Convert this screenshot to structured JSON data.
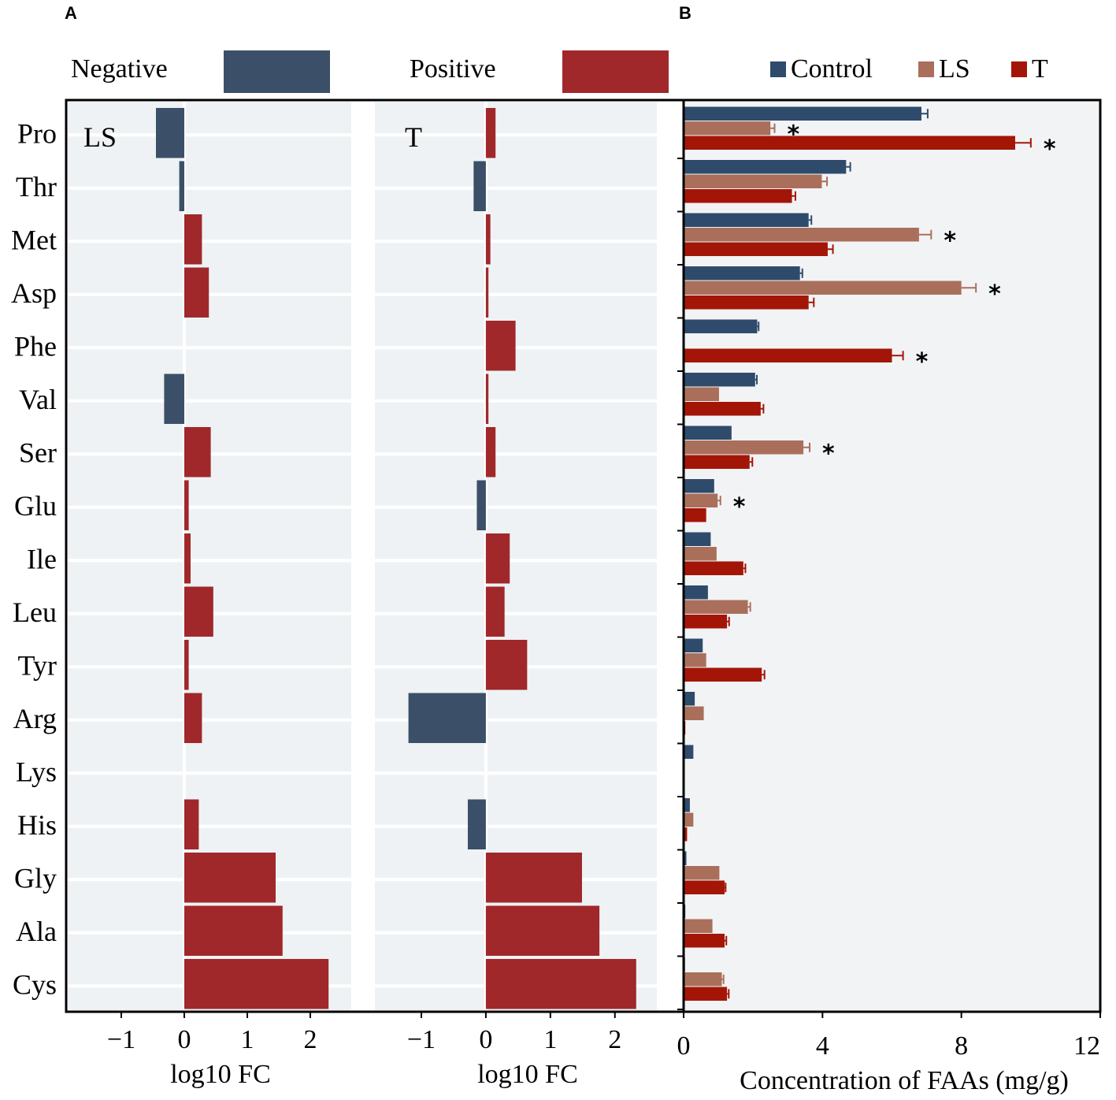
{
  "colors": {
    "negative": "#3b5068",
    "positive": "#a0282a",
    "control": "#2f4b6c",
    "ls": "#aa6f5b",
    "t": "#a31607",
    "panel_bg": "#eef2f4",
    "panel_b_bg": "#f2f3f5",
    "gridline": "#ffffff"
  },
  "panel_labels": {
    "a": "A",
    "b": "B"
  },
  "legend_a": {
    "negative": "Negative",
    "positive": "Positive"
  },
  "chart_data": [
    {
      "type": "bar",
      "orientation": "horizontal",
      "title": "LS",
      "panel": "A",
      "xlabel": "log10 FC",
      "ylabel": "",
      "xlim": [
        -1.85,
        2.65
      ],
      "xticks": [
        "−1",
        "0",
        "1",
        "2"
      ],
      "xtick_values": [
        -1,
        0,
        1,
        2
      ],
      "categories": [
        "Pro",
        "Thr",
        "Met",
        "Asp",
        "Phe",
        "Val",
        "Ser",
        "Glu",
        "Ile",
        "Leu",
        "Tyr",
        "Arg",
        "Lys",
        "His",
        "Gly",
        "Ala",
        "Cys"
      ],
      "values": [
        -0.45,
        -0.08,
        0.28,
        0.39,
        0,
        -0.32,
        0.42,
        0.07,
        0.1,
        0.46,
        0.07,
        0.28,
        0,
        0.23,
        1.45,
        1.56,
        2.29
      ]
    },
    {
      "type": "bar",
      "orientation": "horizontal",
      "title": "T",
      "panel": "A",
      "xlabel": "log10 FC",
      "ylabel": "",
      "xlim": [
        -1.72,
        2.65
      ],
      "xticks": [
        "−1",
        "0",
        "1",
        "2"
      ],
      "xtick_values": [
        -1,
        0,
        1,
        2
      ],
      "categories": [
        "Pro",
        "Thr",
        "Met",
        "Asp",
        "Phe",
        "Val",
        "Ser",
        "Glu",
        "Ile",
        "Leu",
        "Tyr",
        "Arg",
        "Lys",
        "His",
        "Gly",
        "Ala",
        "Cys"
      ],
      "values": [
        0.15,
        -0.19,
        0.07,
        0.04,
        0.46,
        0.04,
        0.15,
        -0.14,
        0.37,
        0.29,
        0.64,
        -1.2,
        0,
        -0.28,
        1.49,
        1.76,
        2.33
      ]
    },
    {
      "type": "bar",
      "orientation": "horizontal",
      "panel": "B",
      "title": "",
      "xlabel": "Concentration of FAAs (mg/g)",
      "ylabel": "",
      "xlim": [
        0,
        12
      ],
      "xticks": [
        "0",
        "4",
        "8",
        "12"
      ],
      "xtick_values": [
        0,
        4,
        8,
        12
      ],
      "categories": [
        "Pro",
        "Thr",
        "Met",
        "Asp",
        "Phe",
        "Val",
        "Ser",
        "Glu",
        "Ile",
        "Leu",
        "Tyr",
        "Arg",
        "Lys",
        "His",
        "Gly",
        "Ala",
        "Cys"
      ],
      "series": [
        {
          "name": "Control",
          "values": [
            6.85,
            4.68,
            3.6,
            3.35,
            2.12,
            2.06,
            1.38,
            0.88,
            0.78,
            0.7,
            0.55,
            0.32,
            0.28,
            0.18,
            0.08,
            0.05,
            0.04
          ],
          "errors": [
            0.18,
            0.12,
            0.08,
            0.07,
            0.04,
            0.05,
            0,
            0,
            0,
            0,
            0,
            0,
            0,
            0,
            0,
            0,
            0
          ]
        },
        {
          "name": "LS",
          "values": [
            2.5,
            3.98,
            6.78,
            8.0,
            0,
            1.02,
            3.45,
            0.98,
            0.95,
            1.85,
            0.65,
            0.58,
            0,
            0.28,
            1.03,
            0.83,
            1.1
          ],
          "errors": [
            0.12,
            0.15,
            0.35,
            0.42,
            0,
            0,
            0.18,
            0.08,
            0,
            0.07,
            0,
            0,
            0,
            0,
            0,
            0,
            0.05
          ],
          "significant": [
            true,
            false,
            true,
            true,
            false,
            false,
            true,
            true,
            false,
            false,
            false,
            false,
            false,
            false,
            false,
            false,
            false
          ]
        },
        {
          "name": "T",
          "values": [
            9.55,
            3.12,
            4.15,
            3.6,
            6.0,
            2.22,
            1.9,
            0.65,
            1.72,
            1.25,
            2.25,
            0.05,
            0,
            0.1,
            1.18,
            1.18,
            1.25
          ],
          "errors": [
            0.45,
            0.1,
            0.15,
            0.15,
            0.32,
            0.08,
            0.08,
            0,
            0.06,
            0.06,
            0.08,
            0,
            0,
            0,
            0.03,
            0.05,
            0.05
          ],
          "significant": [
            true,
            false,
            false,
            false,
            true,
            false,
            false,
            false,
            false,
            false,
            false,
            false,
            false,
            false,
            false,
            false,
            false
          ]
        }
      ],
      "legend": [
        "Control",
        "LS",
        "T"
      ],
      "significance_marker": "*"
    }
  ]
}
